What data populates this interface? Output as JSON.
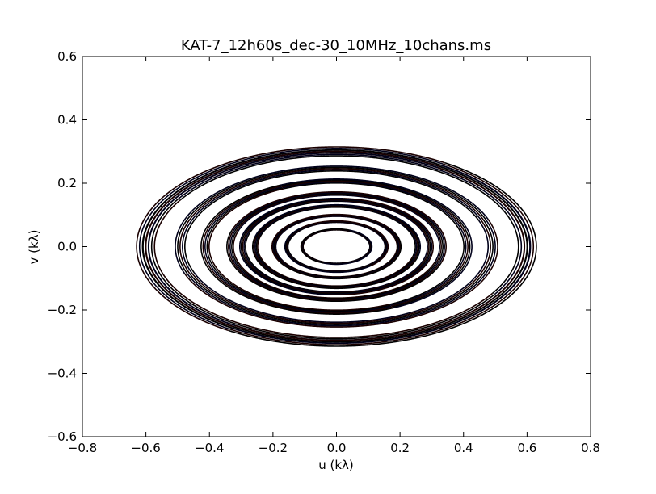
{
  "chart_data": {
    "type": "scatter",
    "title": "KAT-7_12h60s_dec-30_10MHz_10chans.ms",
    "xlabel": "u (kλ)",
    "ylabel": "v (kλ)",
    "xlim": [
      -0.8,
      0.8
    ],
    "ylim": [
      -0.6,
      0.6
    ],
    "xticks": [
      -0.8,
      -0.6,
      -0.4,
      -0.2,
      0.0,
      0.2,
      0.4,
      0.6,
      0.8
    ],
    "yticks": [
      -0.6,
      -0.4,
      -0.2,
      0.0,
      0.2,
      0.4,
      0.6
    ],
    "xtick_labels": [
      "−0.8",
      "−0.6",
      "−0.4",
      "−0.2",
      "0.0",
      "0.2",
      "0.4",
      "0.6",
      "0.8"
    ],
    "ytick_labels": [
      "−0.6",
      "−0.4",
      "−0.2",
      "0.0",
      "0.2",
      "0.4",
      "0.6"
    ],
    "grid": false,
    "legend": "none",
    "colors": [
      "#000000",
      "#1a0000",
      "#00001a"
    ],
    "declination_deg": -30,
    "baselines": [
      {
        "L": 0.6,
        "phi": 2.6
      },
      {
        "L": 0.62,
        "phi": 1.0
      },
      {
        "L": 0.5,
        "phi": 0.35
      },
      {
        "L": 0.42,
        "phi": 2.0
      },
      {
        "L": 0.34,
        "phi": -0.3
      },
      {
        "L": 0.3,
        "phi": 1.5
      },
      {
        "L": 0.26,
        "phi": 2.9
      },
      {
        "L": 0.2,
        "phi": 0.5
      },
      {
        "L": 0.16,
        "phi": 2.3
      },
      {
        "L": 0.11,
        "phi": 1.2
      }
    ],
    "channel_scales": [
      0.955,
      0.97,
      0.985,
      1.0,
      1.015
    ],
    "ha_range_rad": [
      -1.5708,
      1.5708
    ],
    "ha_samples": 720
  }
}
